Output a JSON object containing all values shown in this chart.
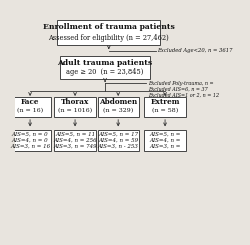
{
  "bg_color": "#e8e4de",
  "box_fc": "#ffffff",
  "box_ec": "#444444",
  "arrow_color": "#333333",
  "text_color": "#111111",
  "box1_line1": "Enrollment of trauma patients",
  "box1_line2": "Assessed for eligibility (n = 27,462)",
  "excl1": "Excluded Age<20, n = 3617",
  "box2_line1": "Adult trauma patients",
  "box2_line2": "age ≥ 20  (n = 23,845)",
  "excl2": [
    "Excluded Poly-trauma, n =",
    "Excluded AIS=6, n = 37",
    "Excluded AIS=1 or 2, n = 12"
  ],
  "cat_labels": [
    "Face",
    "Thorax",
    "Abdomen",
    "Extrem"
  ],
  "cat_n": [
    "(n = 16)",
    "(n = 1016)",
    "(n = 329)",
    "(n = 58)"
  ],
  "ais_face": [
    "AIS=5, n = 0",
    "AIS=4, n = 0",
    "AIS=3, n = 16"
  ],
  "ais_thorax": [
    "AIS=5, n = 11",
    "AIS=4, n = 256",
    "AIS=3, n = 749"
  ],
  "ais_abdomen": [
    "AIS=5, n = 17",
    "AIS=4, n = 59",
    "AIS=3, n - 253"
  ],
  "ais_extrem": [
    "AIS=5, n =",
    "AIS=4, n =",
    "AIS=3, n ="
  ],
  "xlim": [
    0,
    12
  ],
  "ylim": [
    0,
    10
  ]
}
